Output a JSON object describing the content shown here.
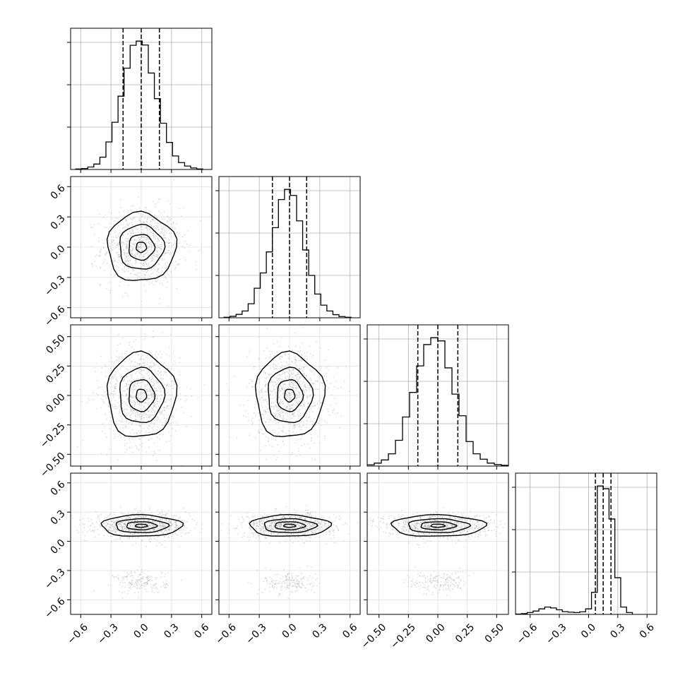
{
  "chart_data": {
    "type": "corner",
    "variables": 4,
    "grid": true,
    "quantiles": [
      0.16,
      0.5,
      0.84
    ],
    "ranges": [
      [
        -0.7,
        0.7
      ],
      [
        -0.7,
        0.7
      ],
      [
        -0.6,
        0.6
      ],
      [
        -0.75,
        0.7
      ]
    ],
    "tick_values": [
      [
        -0.6,
        -0.3,
        0.0,
        0.3,
        0.6
      ],
      [
        -0.6,
        -0.3,
        0.0,
        0.3,
        0.6
      ],
      [
        -0.5,
        -0.25,
        0.0,
        0.25,
        0.5
      ],
      [
        -0.6,
        -0.3,
        0.0,
        0.3,
        0.6
      ]
    ],
    "tick_labels": [
      [
        "−0.6",
        "−0.3",
        "0.0",
        "0.3",
        "0.6"
      ],
      [
        "−0.6",
        "−0.3",
        "0.0",
        "0.3",
        "0.6"
      ],
      [
        "−0.50",
        "−0.25",
        "0.00",
        "0.25",
        "0.50"
      ],
      [
        "−0.6",
        "−0.3",
        "0.0",
        "0.3",
        "0.6"
      ]
    ],
    "histograms": [
      {
        "variable": 0,
        "bin_edges": [
          -0.65,
          -0.59,
          -0.53,
          -0.47,
          -0.41,
          -0.35,
          -0.29,
          -0.23,
          -0.17,
          -0.11,
          -0.05,
          0.01,
          0.07,
          0.13,
          0.19,
          0.25,
          0.31,
          0.37,
          0.43,
          0.49,
          0.55,
          0.61
        ],
        "counts": [
          2,
          4,
          10,
          22,
          50,
          112,
          192,
          298,
          412,
          505,
          522,
          506,
          392,
          288,
          188,
          110,
          55,
          28,
          14,
          6,
          2
        ],
        "quantile_values": [
          -0.18,
          0.0,
          0.18
        ]
      },
      {
        "variable": 1,
        "bin_edges": [
          -0.65,
          -0.59,
          -0.53,
          -0.47,
          -0.41,
          -0.35,
          -0.29,
          -0.23,
          -0.17,
          -0.11,
          -0.05,
          0.01,
          0.07,
          0.13,
          0.19,
          0.25,
          0.31,
          0.37,
          0.43,
          0.49,
          0.55,
          0.61
        ],
        "counts": [
          2,
          6,
          14,
          28,
          58,
          122,
          185,
          272,
          372,
          488,
          530,
          505,
          400,
          280,
          175,
          98,
          52,
          28,
          13,
          5,
          2
        ],
        "quantile_values": [
          -0.17,
          0.0,
          0.17
        ]
      },
      {
        "variable": 2,
        "bin_edges": [
          -0.6,
          -0.54,
          -0.48,
          -0.42,
          -0.36,
          -0.3,
          -0.24,
          -0.18,
          -0.12,
          -0.06,
          0.0,
          0.06,
          0.12,
          0.18,
          0.24,
          0.3,
          0.36,
          0.42,
          0.48,
          0.54,
          0.6
        ],
        "counts": [
          5,
          12,
          25,
          50,
          105,
          200,
          300,
          408,
          495,
          523,
          510,
          400,
          293,
          205,
          100,
          50,
          28,
          12,
          6,
          3
        ],
        "quantile_values": [
          -0.17,
          0.0,
          0.17
        ]
      },
      {
        "variable": 3,
        "bin_edges": [
          -0.75,
          -0.69,
          -0.63,
          -0.57,
          -0.51,
          -0.45,
          -0.39,
          -0.33,
          -0.27,
          -0.21,
          -0.15,
          -0.09,
          -0.03,
          0.03,
          0.09,
          0.15,
          0.21,
          0.27,
          0.33,
          0.39,
          0.45
        ],
        "counts": [
          2,
          4,
          10,
          18,
          30,
          40,
          35,
          25,
          15,
          12,
          10,
          14,
          30,
          120,
          700,
          685,
          520,
          200,
          40,
          10
        ],
        "quantile_values": [
          0.07,
          0.15,
          0.23
        ]
      }
    ],
    "pairs": [
      {
        "x": 0,
        "y": 1,
        "mean": [
          0.0,
          0.0
        ],
        "sd": [
          0.17,
          0.17
        ],
        "outlier": false
      },
      {
        "x": 0,
        "y": 2,
        "mean": [
          0.0,
          0.0
        ],
        "sd": [
          0.17,
          0.18
        ],
        "outlier": false
      },
      {
        "x": 1,
        "y": 2,
        "mean": [
          0.0,
          0.0
        ],
        "sd": [
          0.17,
          0.18
        ],
        "outlier": false
      },
      {
        "x": 0,
        "y": 3,
        "mean": [
          0.0,
          0.16
        ],
        "sd": [
          0.2,
          0.055
        ],
        "outlier": true,
        "outlier_center": [
          0.0,
          -0.42
        ]
      },
      {
        "x": 1,
        "y": 3,
        "mean": [
          0.0,
          0.16
        ],
        "sd": [
          0.2,
          0.055
        ],
        "outlier": true,
        "outlier_center": [
          0.0,
          -0.42
        ]
      },
      {
        "x": 2,
        "y": 3,
        "mean": [
          0.0,
          0.16
        ],
        "sd": [
          0.2,
          0.055
        ],
        "outlier": true,
        "outlier_center": [
          0.0,
          -0.42
        ]
      }
    ]
  }
}
